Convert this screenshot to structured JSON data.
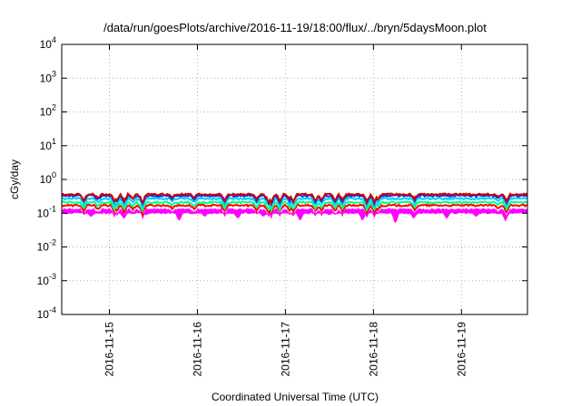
{
  "chart_data": {
    "type": "line",
    "title": "/data/run/goesPlots/archive/2016-11-19/18:00/flux/../bryn/5daysMoon.plot",
    "xlabel": "Coordinated Universal Time (UTC)",
    "ylabel": "cGy/day",
    "yscale": "log",
    "ylim": [
      0.0001,
      10000
    ],
    "y_ticks": [
      {
        "value": 0.0001,
        "base": "10",
        "exp": "-4"
      },
      {
        "value": 0.001,
        "base": "10",
        "exp": "-3"
      },
      {
        "value": 0.01,
        "base": "10",
        "exp": "-2"
      },
      {
        "value": 0.1,
        "base": "10",
        "exp": "-1"
      },
      {
        "value": 1,
        "base": "10",
        "exp": "0"
      },
      {
        "value": 10,
        "base": "10",
        "exp": "1"
      },
      {
        "value": 100,
        "base": "10",
        "exp": "2"
      },
      {
        "value": 1000,
        "base": "10",
        "exp": "3"
      },
      {
        "value": 10000,
        "base": "10",
        "exp": "4"
      }
    ],
    "xlim": [
      "2016-11-14T11:00",
      "2016-11-19T18:00"
    ],
    "x_ticks": [
      {
        "value": "2016-11-15",
        "label": "2016-11-15"
      },
      {
        "value": "2016-11-16",
        "label": "2016-11-16"
      },
      {
        "value": "2016-11-17",
        "label": "2016-11-17"
      },
      {
        "value": "2016-11-18",
        "label": "2016-11-18"
      },
      {
        "value": "2016-11-19",
        "label": "2016-11-19"
      }
    ],
    "grid": true,
    "series": [
      {
        "color": "#ff00ff",
        "style": "fill",
        "baseline": 0.13,
        "dips": [
          {
            "x": "2016-11-14T19:00",
            "y": 0.08
          },
          {
            "x": "2016-11-15T04:00",
            "y": 0.07
          },
          {
            "x": "2016-11-15T10:00",
            "y": 0.09
          },
          {
            "x": "2016-11-15T19:00",
            "y": 0.06
          },
          {
            "x": "2016-11-16T02:00",
            "y": 0.08
          },
          {
            "x": "2016-11-16T11:00",
            "y": 0.07
          },
          {
            "x": "2016-11-16T18:00",
            "y": 0.08
          },
          {
            "x": "2016-11-17T04:00",
            "y": 0.06
          },
          {
            "x": "2016-11-17T12:00",
            "y": 0.09
          },
          {
            "x": "2016-11-17T21:00",
            "y": 0.06
          },
          {
            "x": "2016-11-18T06:00",
            "y": 0.05
          },
          {
            "x": "2016-11-18T11:00",
            "y": 0.07
          },
          {
            "x": "2016-11-18T20:00",
            "y": 0.07
          },
          {
            "x": "2016-11-19T04:00",
            "y": 0.08
          },
          {
            "x": "2016-11-19T12:00",
            "y": 0.06
          }
        ]
      },
      {
        "color": "#ff0000",
        "style": "line",
        "baseline": 0.17
      },
      {
        "color": "#00ff88",
        "style": "line",
        "baseline": 0.21
      },
      {
        "color": "#00ccff",
        "style": "line",
        "baseline": 0.27
      },
      {
        "color": "#0033ff",
        "style": "line",
        "baseline": 0.33
      },
      {
        "color": "#cc0000",
        "style": "line",
        "baseline": 0.36
      }
    ]
  }
}
